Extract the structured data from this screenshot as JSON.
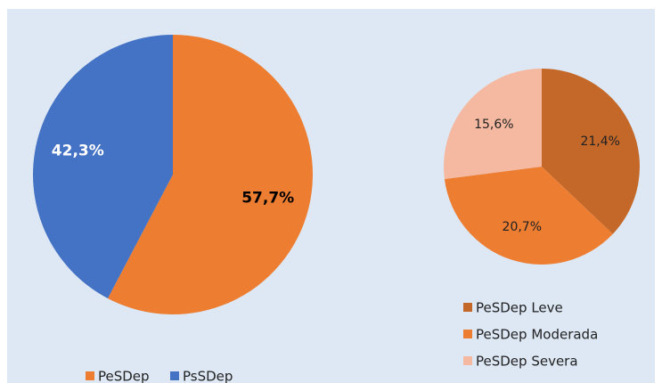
{
  "chart_data": [
    {
      "type": "pie",
      "categories": [
        "PeSDep",
        "PsSDep"
      ],
      "values": [
        57.7,
        42.3
      ],
      "value_labels": [
        "57,7%",
        "42,3%"
      ],
      "colors": [
        "#ed7d31",
        "#4472c4"
      ],
      "label_colors": [
        "#000000",
        "#ffffff"
      ],
      "legend": "bottom"
    },
    {
      "type": "pie",
      "categories": [
        "PeSDep Leve",
        "PeSDep Moderada",
        "PeSDep Severa"
      ],
      "values": [
        21.4,
        20.7,
        15.6
      ],
      "value_labels": [
        "21,4%",
        "20,7%",
        "15,6%"
      ],
      "colors": [
        "#c4682a",
        "#ed7d31",
        "#f4b9a0"
      ],
      "label_colors": [
        "#222222",
        "#222222",
        "#222222"
      ],
      "legend": "bottom"
    }
  ]
}
